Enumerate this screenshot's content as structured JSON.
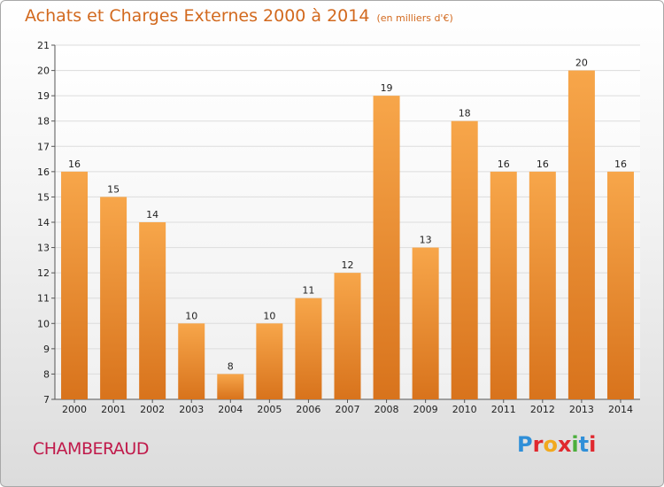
{
  "header": {
    "title": "Achats et Charges Externes 2000 à 2014",
    "subtitle": "(en milliers d'€)"
  },
  "footer": {
    "location": "CHAMBERAUD",
    "logo_text": "Proxiti"
  },
  "colors": {
    "bar_top": "#f7a64a",
    "bar_bottom": "#d8731c",
    "title": "#d2691e",
    "location": "#c0194a",
    "grid": "#dcdcdc"
  },
  "chart_data": {
    "type": "bar",
    "title": "Achats et Charges Externes 2000 à 2014",
    "subtitle": "(en milliers d'€)",
    "categories": [
      "2000",
      "2001",
      "2002",
      "2003",
      "2004",
      "2005",
      "2006",
      "2007",
      "2008",
      "2009",
      "2010",
      "2011",
      "2012",
      "2013",
      "2014"
    ],
    "values": [
      16,
      15,
      14,
      10,
      8,
      10,
      11,
      12,
      19,
      13,
      18,
      16,
      16,
      20,
      16
    ],
    "ylim": [
      7,
      21
    ],
    "yticks": [
      7,
      8,
      9,
      10,
      11,
      12,
      13,
      14,
      15,
      16,
      17,
      18,
      19,
      20,
      21
    ],
    "grid": true,
    "data_labels": true
  }
}
